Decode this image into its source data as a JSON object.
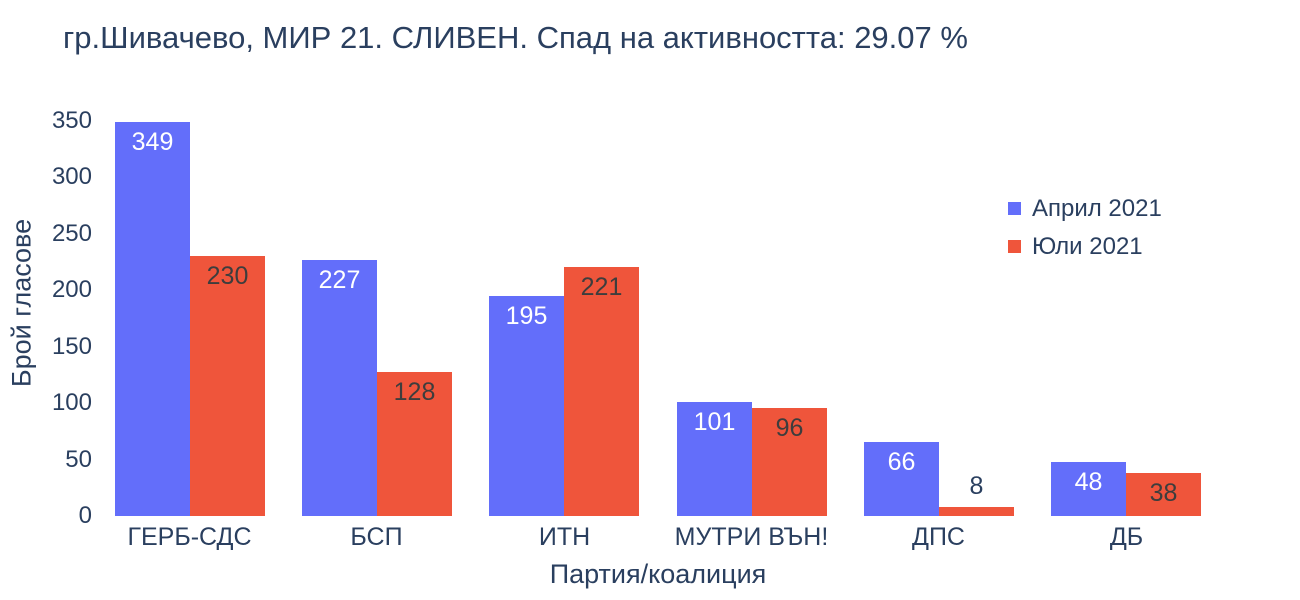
{
  "title": "гр.Шивачево, МИР 21. СЛИВЕН. Спад на активността: 29.07 %",
  "colors": {
    "text": "#2a3f5f",
    "background": "#ffffff",
    "april_bar": "#636EFA",
    "july_bar": "#EF553B",
    "inside_label_on_blue": "#ffffff",
    "inside_label_on_red": "#3d3d3d",
    "outside_label": "#2a3f5f"
  },
  "chart_data": {
    "type": "bar",
    "title": "гр.Шивачево, МИР 21. СЛИВЕН. Спад на активността: 29.07 %",
    "xlabel": "Партия/коалиция",
    "ylabel": "Брой гласове",
    "categories": [
      "ГЕРБ-СДС",
      "БСП",
      "ИТН",
      "МУТРИ ВЪН!",
      "ДПС",
      "ДБ"
    ],
    "series": [
      {
        "name": "Април 2021",
        "color": "#636EFA",
        "label_color": "#ffffff",
        "values": [
          349,
          227,
          195,
          101,
          66,
          48
        ]
      },
      {
        "name": "Юли 2021",
        "color": "#EF553B",
        "label_color": "#3d3d3d",
        "values": [
          230,
          128,
          221,
          96,
          8,
          38
        ]
      }
    ],
    "ylim": [
      0,
      350
    ],
    "yticks": [
      0,
      50,
      100,
      150,
      200,
      250,
      300,
      350
    ],
    "grid": false,
    "legend_position": "right",
    "outside_label_color": "#2a3f5f",
    "bar_labels_shown": true
  }
}
